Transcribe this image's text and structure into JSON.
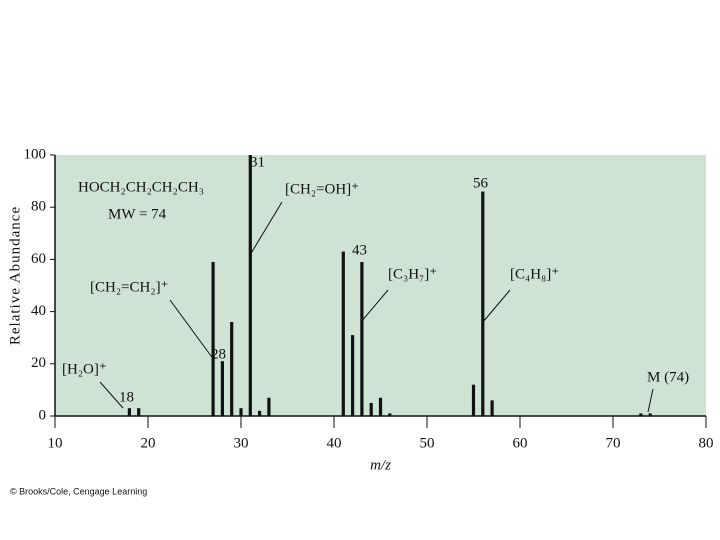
{
  "chart_data": {
    "type": "bar",
    "x_label": "m/z",
    "y_label": "Relative Abundance",
    "x": [
      18,
      19,
      27,
      28,
      29,
      30,
      31,
      32,
      33,
      41,
      42,
      43,
      44,
      45,
      46,
      55,
      56,
      57,
      73,
      74
    ],
    "values": [
      3,
      3,
      59,
      21,
      36,
      3,
      100,
      2,
      7,
      63,
      31,
      59,
      5,
      7,
      1,
      12,
      86,
      6,
      1,
      1
    ],
    "color": "#111111",
    "background": "#cfe3d5",
    "xlim": [
      10,
      80
    ],
    "xticks": [
      10,
      20,
      30,
      40,
      50,
      60,
      70,
      80
    ],
    "ylim": [
      0,
      100
    ],
    "yticks": [
      0,
      20,
      40,
      60,
      80,
      100
    ],
    "annotations": [
      "HOCH₂CH₂CH₂CH₃",
      "MW = 74",
      "[CH₂=OH]⁺",
      "[CH₂=CH₂]⁺",
      "[C₃H₇]⁺",
      "[C₄H₈]⁺",
      "[H₂O]⁺",
      "M (74)"
    ],
    "credit": "© Brooks/Cole, Cengage Learning"
  }
}
